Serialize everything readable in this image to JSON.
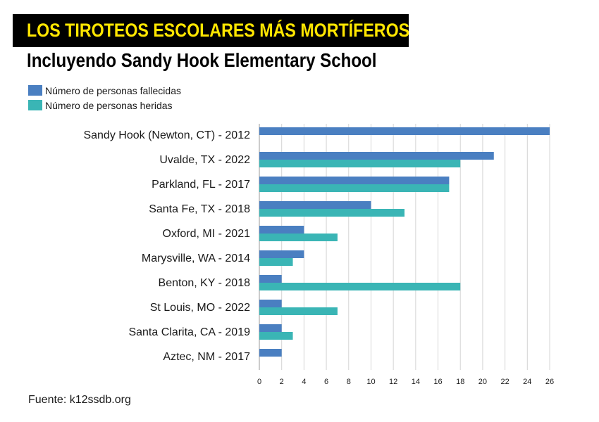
{
  "title": "LOS TIROTEOS ESCOLARES MÁS MORTÍFEROS",
  "subtitle": "Incluyendo Sandy Hook Elementary School",
  "source": "Fuente: k12ssdb.org",
  "colors": {
    "title_bg": "#000000",
    "title_text": "#ffe600",
    "killed": "#4a7fc1",
    "injured": "#3ab5b5"
  },
  "legend": [
    {
      "label": "Número de personas fallecidas",
      "color": "#4a7fc1"
    },
    {
      "label": "Número de personas heridas",
      "color": "#3ab5b5"
    }
  ],
  "chart_data": {
    "type": "bar",
    "orientation": "horizontal",
    "title": "LOS TIROTEOS ESCOLARES MÁS MORTÍFEROS",
    "subtitle": "Incluyendo Sandy Hook Elementary School",
    "categories": [
      "Sandy Hook (Newton, CT) - 2012",
      "Uvalde, TX - 2022",
      "Parkland, FL - 2017",
      "Santa Fe, TX - 2018",
      "Oxford, MI - 2021",
      "Marysville, WA - 2014",
      "Benton, KY - 2018",
      "St Louis, MO - 2022",
      "Santa Clarita, CA - 2019",
      "Aztec, NM - 2017"
    ],
    "series": [
      {
        "name": "Número de personas fallecidas",
        "color": "#4a7fc1",
        "values": [
          26,
          21,
          17,
          10,
          4,
          4,
          2,
          2,
          2,
          2
        ]
      },
      {
        "name": "Número de personas heridas",
        "color": "#3ab5b5",
        "values": [
          0,
          18,
          17,
          13,
          7,
          3,
          18,
          7,
          3,
          0
        ]
      }
    ],
    "xlim": [
      0,
      26
    ],
    "xticks": [
      0,
      2,
      4,
      6,
      8,
      10,
      12,
      14,
      16,
      18,
      20,
      22,
      24,
      26
    ],
    "grid": true,
    "legend_position": "top-left"
  }
}
